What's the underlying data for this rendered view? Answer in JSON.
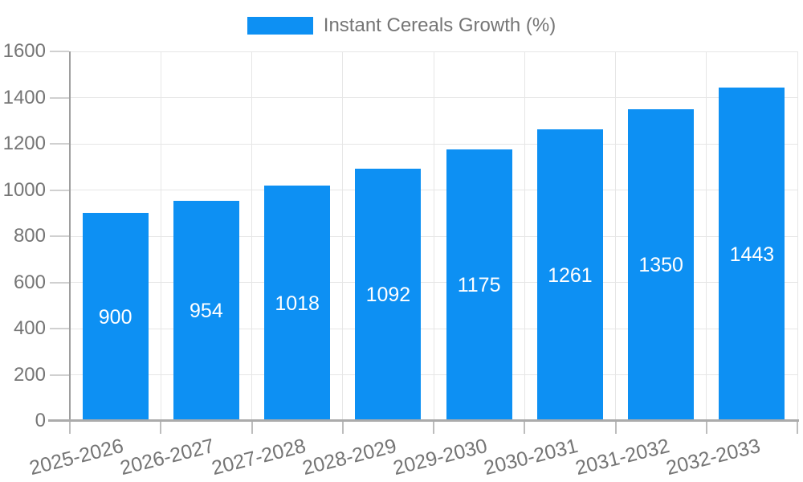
{
  "chart_data": {
    "type": "bar",
    "legend": {
      "label": "Instant Cereals Growth (%)",
      "position": "top"
    },
    "categories": [
      "2025-2026",
      "2026-2027",
      "2027-2028",
      "2028-2029",
      "2029-2030",
      "2030-2031",
      "2031-2032",
      "2032-2033"
    ],
    "series": [
      {
        "name": "Instant Cereals Growth (%)",
        "values": [
          900,
          954,
          1018,
          1092,
          1175,
          1261,
          1350,
          1443
        ]
      }
    ],
    "value_labels": [
      "900",
      "954",
      "1018",
      "1092",
      "1175",
      "1261",
      "1350",
      "1443"
    ],
    "xlabel": "",
    "ylabel": "",
    "ylim": [
      0,
      1600
    ],
    "yticks": [
      0,
      200,
      400,
      600,
      800,
      1000,
      1200,
      1400,
      1600
    ],
    "grid": true,
    "colors": {
      "bar": "#0d90f3",
      "value_text": "#ffffff",
      "axis_text": "#757575",
      "gridline": "#e6e6e6",
      "x_axis_line": "#ababab",
      "y_axis_line": "#9e9e9e",
      "x_tick": "#bdbdbd",
      "y_tick": "#d0d0d0",
      "background": "#ffffff"
    }
  }
}
